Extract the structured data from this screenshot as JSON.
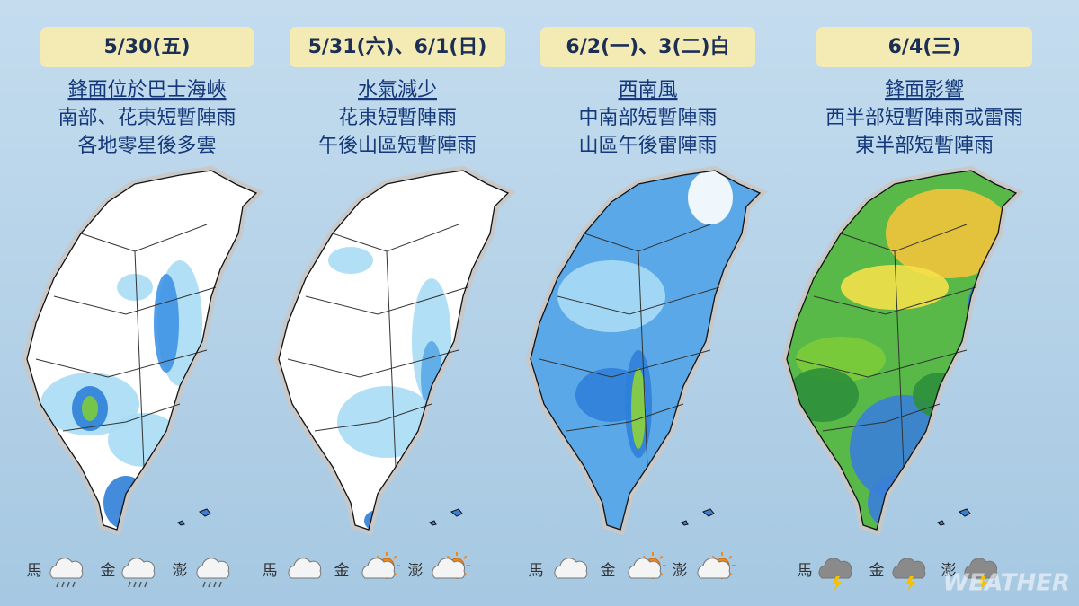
{
  "panels": [
    {
      "date": "5/30(五)",
      "lines": [
        "鋒面位於巴士海峽",
        "南部、花東短暫陣雨",
        "各地零星後多雲"
      ],
      "islands": [
        "馬",
        "金",
        "澎"
      ]
    },
    {
      "date": "5/31(六)、6/1(日)",
      "lines": [
        "水氣減少",
        "花東短暫陣雨",
        "午後山區短暫陣雨"
      ],
      "islands": [
        "馬",
        "金",
        "澎"
      ]
    },
    {
      "date": "6/2(一)、3(二)白",
      "lines": [
        "西南風",
        "中南部短暫陣雨",
        "山區午後雷陣雨"
      ],
      "islands": [
        "馬",
        "金",
        "澎"
      ]
    },
    {
      "date": "6/4(三)",
      "lines": [
        "鋒面影響",
        "西半部短暫陣雨或雷雨",
        "東半部短暫陣雨"
      ],
      "islands": [
        "馬",
        "金",
        "澎"
      ]
    }
  ],
  "watermark": "WEATHER"
}
